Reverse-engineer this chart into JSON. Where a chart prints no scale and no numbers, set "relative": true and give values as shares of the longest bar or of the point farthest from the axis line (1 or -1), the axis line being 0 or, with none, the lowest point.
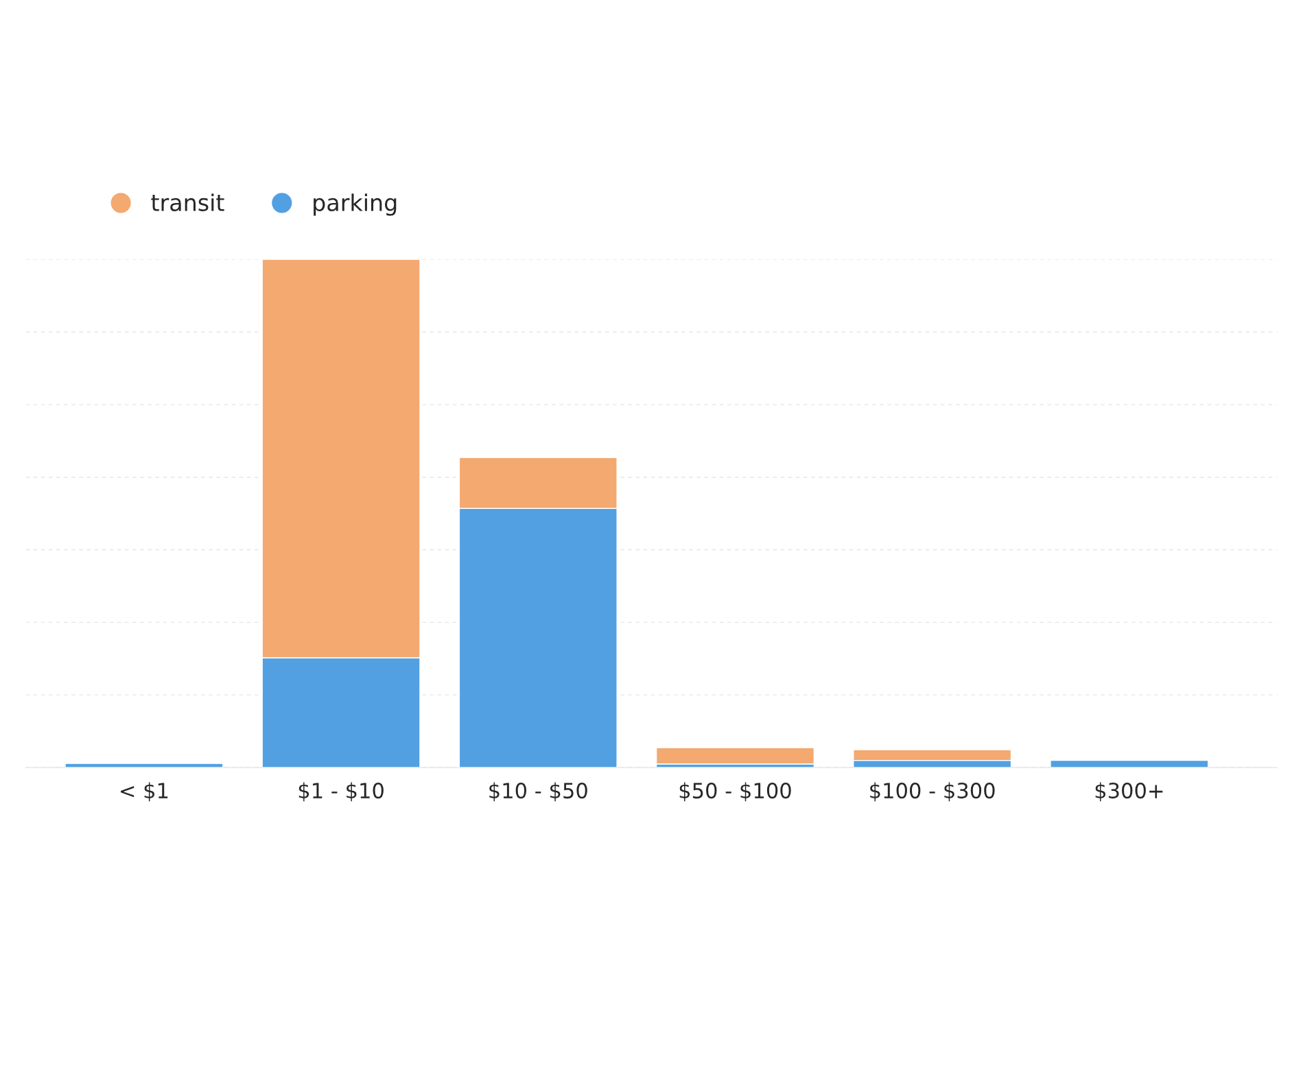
{
  "chart_data": {
    "type": "bar",
    "stacked": true,
    "relative": true,
    "categories": [
      "< $1",
      "$1 - $10",
      "$10 - $50",
      "$50 - $100",
      "$100 - $300",
      "$300+"
    ],
    "series": [
      {
        "name": "parking",
        "color": "#52a0e2",
        "values": [
          0.008,
          0.216,
          0.51,
          0.007,
          0.014,
          0.014
        ]
      },
      {
        "name": "transit",
        "color": "#f3a970",
        "values": [
          null,
          0.784,
          0.1,
          0.032,
          0.021,
          null
        ]
      }
    ],
    "grid": "y",
    "legend": "top left"
  }
}
